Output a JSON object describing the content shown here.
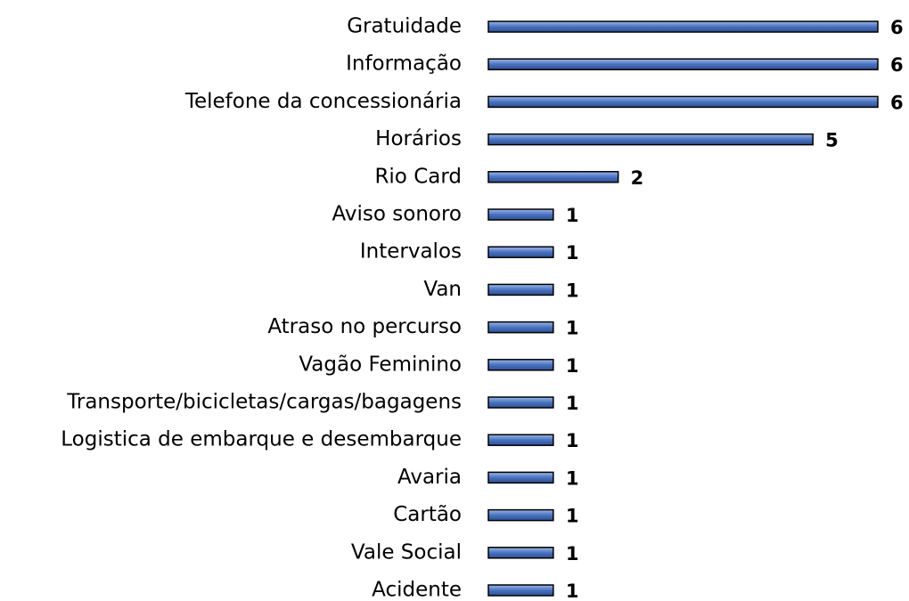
{
  "chart_data": {
    "type": "bar",
    "orientation": "horizontal",
    "categories": [
      "Gratuidade",
      "Informação",
      "Telefone da concessionária",
      "Horários",
      "Rio Card",
      "Aviso sonoro",
      "Intervalos",
      "Van",
      "Atraso no percurso",
      "Vagão Feminino",
      "Transporte/bicicletas/cargas/bagagens",
      "Logistica de embarque e desembarque",
      "Avaria",
      "Cartão",
      "Vale Social",
      "Acidente"
    ],
    "values": [
      6,
      6,
      6,
      5,
      2,
      1,
      1,
      1,
      1,
      1,
      1,
      1,
      1,
      1,
      1,
      1
    ],
    "color": "#4a72c0"
  }
}
